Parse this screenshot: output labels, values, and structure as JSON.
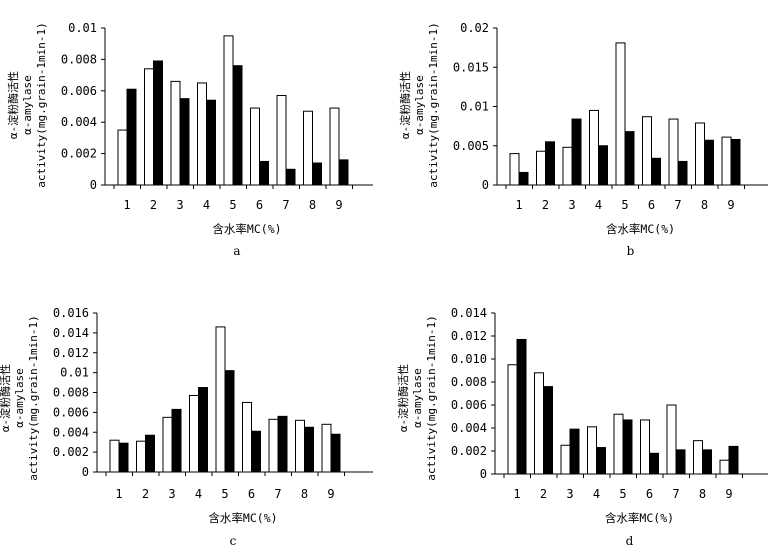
{
  "figure": {
    "panels": [
      "a",
      "b",
      "c",
      "d"
    ]
  },
  "chart_data": [
    {
      "panel_label": "a",
      "type": "bar",
      "categories": [
        "1",
        "2",
        "3",
        "4",
        "5",
        "6",
        "7",
        "8",
        "9"
      ],
      "series": [
        {
          "fill": "white",
          "values": [
            0.0035,
            0.0074,
            0.0066,
            0.0065,
            0.0095,
            0.0049,
            0.0057,
            0.0047,
            0.0049
          ]
        },
        {
          "fill": "black",
          "values": [
            0.0061,
            0.0079,
            0.0055,
            0.0054,
            0.0076,
            0.0015,
            0.001,
            0.0014,
            0.0016
          ]
        }
      ],
      "xlabel": "含水率MC(%)",
      "ylabel_lines": [
        "α-淀粉酶活性",
        "α-amylase",
        "activity(mg.grain-1min-1)"
      ],
      "yticks": [
        "0",
        "0.002",
        "0.004",
        "0.006",
        "0.008",
        "0.01"
      ],
      "ylim": [
        0,
        0.01
      ]
    },
    {
      "panel_label": "b",
      "type": "bar",
      "categories": [
        "1",
        "2",
        "3",
        "4",
        "5",
        "6",
        "7",
        "8",
        "9"
      ],
      "series": [
        {
          "fill": "white",
          "values": [
            0.004,
            0.0043,
            0.0048,
            0.0095,
            0.0181,
            0.0087,
            0.0084,
            0.0079,
            0.0061
          ]
        },
        {
          "fill": "black",
          "values": [
            0.0016,
            0.0055,
            0.0084,
            0.005,
            0.0068,
            0.0034,
            0.003,
            0.0057,
            0.0058
          ]
        }
      ],
      "xlabel": "含水率MC(%)",
      "ylabel_lines": [
        "α-淀粉酶活性",
        "α-amylase",
        "activity(mg.grain-1min-1)"
      ],
      "yticks": [
        "0",
        "0.005",
        "0.01",
        "0.015",
        "0.02"
      ],
      "ylim": [
        0,
        0.02
      ]
    },
    {
      "panel_label": "c",
      "type": "bar",
      "categories": [
        "1",
        "2",
        "3",
        "4",
        "5",
        "6",
        "7",
        "8",
        "9"
      ],
      "series": [
        {
          "fill": "white",
          "values": [
            0.0032,
            0.0031,
            0.0055,
            0.0077,
            0.0146,
            0.007,
            0.0053,
            0.0052,
            0.0048
          ]
        },
        {
          "fill": "black",
          "values": [
            0.0029,
            0.0037,
            0.0063,
            0.0085,
            0.0102,
            0.0041,
            0.0056,
            0.0045,
            0.0038
          ]
        }
      ],
      "xlabel": "含水率MC(%)",
      "ylabel_lines": [
        "α-淀粉酶活性",
        "α-amylase",
        "activity(mg.grain-1min-1)"
      ],
      "yticks": [
        "0",
        "0.002",
        "0.004",
        "0.006",
        "0.008",
        "0.01",
        "0.012",
        "0.014",
        "0.016"
      ],
      "ylim": [
        0,
        0.016
      ]
    },
    {
      "panel_label": "d",
      "type": "bar",
      "categories": [
        "1",
        "2",
        "3",
        "4",
        "5",
        "6",
        "7",
        "8",
        "9"
      ],
      "series": [
        {
          "fill": "white",
          "values": [
            0.0095,
            0.0088,
            0.0025,
            0.0041,
            0.0052,
            0.0047,
            0.006,
            0.0029,
            0.0012
          ]
        },
        {
          "fill": "black",
          "values": [
            0.0117,
            0.0076,
            0.0039,
            0.0023,
            0.0047,
            0.0018,
            0.0021,
            0.0021,
            0.0024
          ]
        }
      ],
      "xlabel": "含水率MC(%)",
      "ylabel_lines": [
        "α-淀粉酶活性",
        "α-amylase",
        "activity(mg.grain-1min-1)"
      ],
      "yticks": [
        "0",
        "0.002",
        "0.004",
        "0.006",
        "0.008",
        "0.010",
        "0.012",
        "0.014"
      ],
      "ylim": [
        0,
        0.014
      ]
    }
  ]
}
